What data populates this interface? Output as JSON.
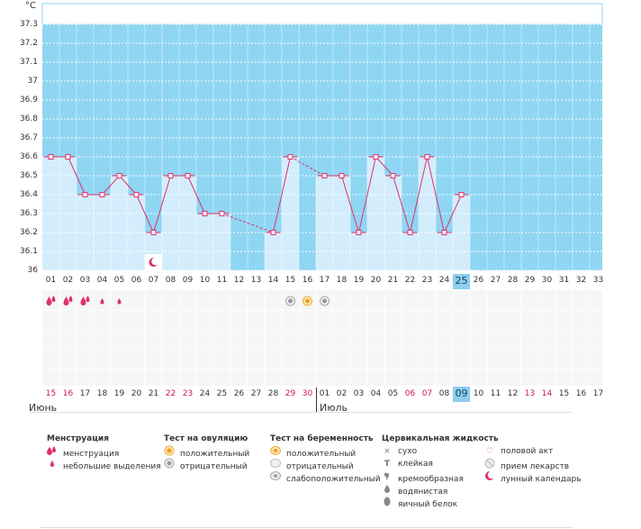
{
  "chart_data": {
    "type": "line",
    "unit_label": "°C",
    "y_ticks": [
      "37.3",
      "37.2",
      "37.1",
      "37",
      "36.9",
      "36.8",
      "36.7",
      "36.6",
      "36.5",
      "36.4",
      "36.3",
      "36.2",
      "36.1",
      "36"
    ],
    "ylim": [
      36.0,
      37.3
    ],
    "cycle_days": [
      "01",
      "02",
      "03",
      "04",
      "05",
      "06",
      "07",
      "08",
      "09",
      "10",
      "11",
      "12",
      "13",
      "14",
      "15",
      "16",
      "17",
      "18",
      "19",
      "20",
      "21",
      "22",
      "23",
      "24",
      "25",
      "26",
      "27",
      "28",
      "29",
      "30",
      "31",
      "32",
      "33"
    ],
    "selected_day": "25",
    "temperatures": [
      {
        "day": 1,
        "t": 36.6
      },
      {
        "day": 2,
        "t": 36.6
      },
      {
        "day": 3,
        "t": 36.4
      },
      {
        "day": 4,
        "t": 36.4
      },
      {
        "day": 5,
        "t": 36.5
      },
      {
        "day": 6,
        "t": 36.4
      },
      {
        "day": 7,
        "t": 36.2
      },
      {
        "day": 8,
        "t": 36.5
      },
      {
        "day": 9,
        "t": 36.5
      },
      {
        "day": 10,
        "t": 36.3
      },
      {
        "day": 11,
        "t": 36.3
      },
      {
        "day": 14,
        "t": 36.2
      },
      {
        "day": 15,
        "t": 36.6
      },
      {
        "day": 17,
        "t": 36.5
      },
      {
        "day": 18,
        "t": 36.5
      },
      {
        "day": 19,
        "t": 36.2
      },
      {
        "day": 20,
        "t": 36.6
      },
      {
        "day": 21,
        "t": 36.5
      },
      {
        "day": 22,
        "t": 36.2
      },
      {
        "day": 23,
        "t": 36.6
      },
      {
        "day": 24,
        "t": 36.2
      },
      {
        "day": 25,
        "t": 36.4
      }
    ],
    "grid": true,
    "colors": {
      "plot_bg": "#8fd6f3",
      "bar_fill": "#d3edfc",
      "line": "#e0306e",
      "marker": "#e0306e"
    }
  },
  "markers": {
    "menstruation": [
      {
        "day": 1,
        "kind": "full"
      },
      {
        "day": 2,
        "kind": "full"
      },
      {
        "day": 3,
        "kind": "full"
      },
      {
        "day": 4,
        "kind": "light"
      },
      {
        "day": 5,
        "kind": "light"
      }
    ],
    "ovulation_test": [
      {
        "day": 15,
        "kind": "negative"
      },
      {
        "day": 16,
        "kind": "positive"
      }
    ],
    "pregnancy_test": [
      {
        "day": 17,
        "kind": "negative"
      }
    ],
    "moon": [
      {
        "day": 7
      }
    ]
  },
  "dates": [
    {
      "d": "15",
      "red": true
    },
    {
      "d": "16",
      "red": true
    },
    {
      "d": "17",
      "red": false
    },
    {
      "d": "18",
      "red": false
    },
    {
      "d": "19",
      "red": false
    },
    {
      "d": "20",
      "red": false
    },
    {
      "d": "21",
      "red": false
    },
    {
      "d": "22",
      "red": true
    },
    {
      "d": "23",
      "red": true
    },
    {
      "d": "24",
      "red": false
    },
    {
      "d": "25",
      "red": false
    },
    {
      "d": "26",
      "red": false
    },
    {
      "d": "27",
      "red": false
    },
    {
      "d": "28",
      "red": false
    },
    {
      "d": "29",
      "red": true
    },
    {
      "d": "30",
      "red": true
    },
    {
      "d": "01",
      "red": false
    },
    {
      "d": "02",
      "red": false
    },
    {
      "d": "03",
      "red": false
    },
    {
      "d": "04",
      "red": false
    },
    {
      "d": "05",
      "red": false
    },
    {
      "d": "06",
      "red": true
    },
    {
      "d": "07",
      "red": true
    },
    {
      "d": "08",
      "red": false
    },
    {
      "d": "09",
      "red": false,
      "sel": true
    },
    {
      "d": "10",
      "red": false
    },
    {
      "d": "11",
      "red": false
    },
    {
      "d": "12",
      "red": false
    },
    {
      "d": "13",
      "red": true
    },
    {
      "d": "14",
      "red": true
    },
    {
      "d": "15",
      "red": false
    },
    {
      "d": "16",
      "red": false
    },
    {
      "d": "17",
      "red": false
    }
  ],
  "months": {
    "first": "Июнь",
    "second": "Июль"
  },
  "legend": {
    "menstruation": {
      "title": "Менструация",
      "items": [
        "менструация",
        "небольшие выделения"
      ]
    },
    "ovulation": {
      "title": "Тест на овуляцию",
      "items": [
        "положительный",
        "отрицательный"
      ]
    },
    "pregnancy": {
      "title": "Тест на беременность",
      "items": [
        "положительный",
        "отрицательный",
        "слабоположительный"
      ]
    },
    "cervical": {
      "title": "Цервикальная жидкость",
      "items": [
        "сухо",
        "клейкая",
        "кремообразная",
        "водянистая",
        "яичный белок"
      ]
    },
    "other": {
      "items": [
        "половой акт",
        "прием лекарств",
        "лунный календарь"
      ]
    }
  }
}
